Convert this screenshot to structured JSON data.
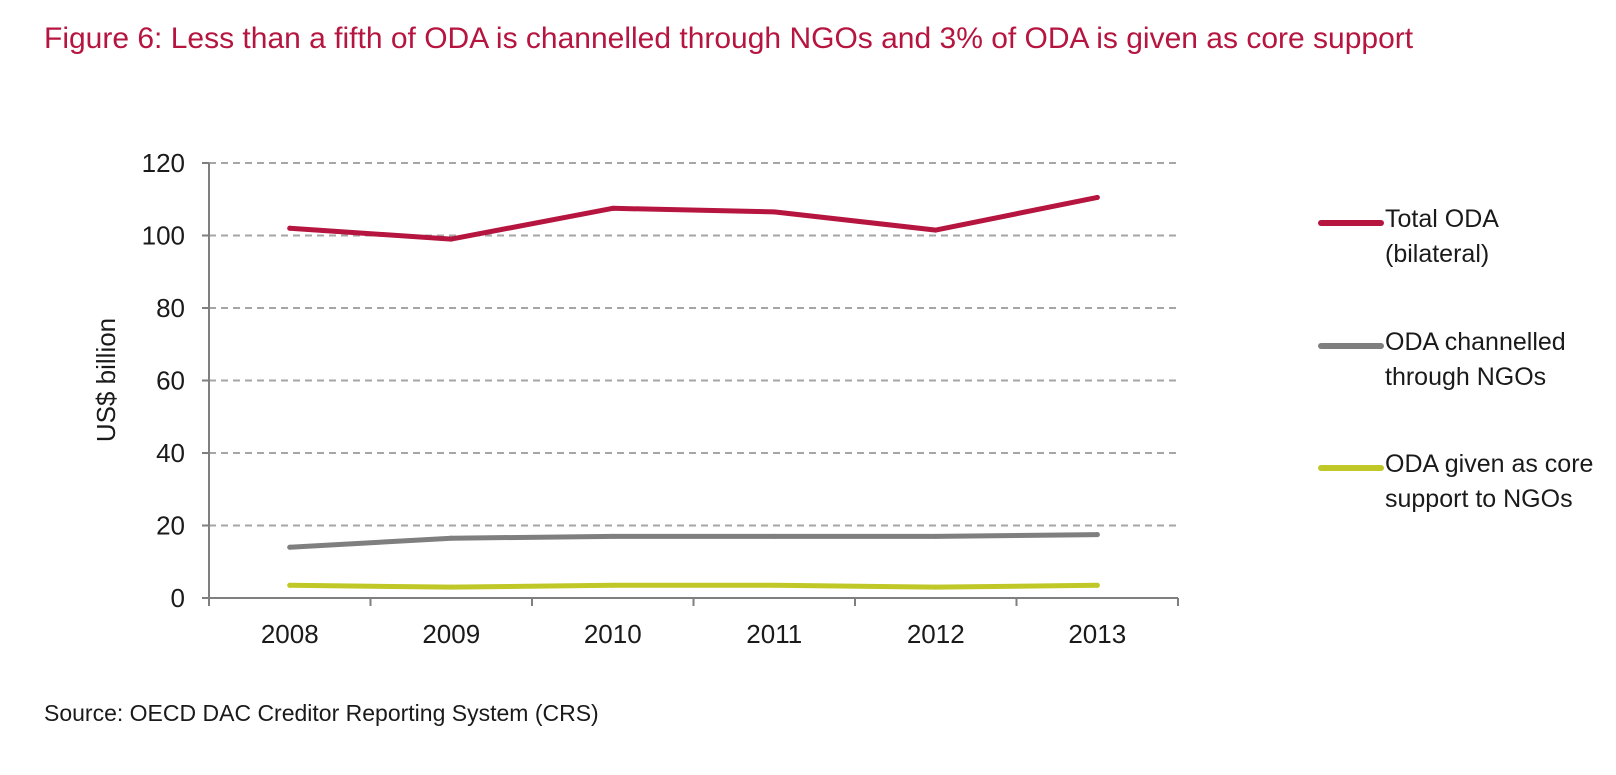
{
  "title": "Figure 6: Less than a fifth of ODA is channelled through NGOs and 3% of ODA is given as core support",
  "source": "Source: OECD DAC Creditor Reporting System (CRS)",
  "chart_data": {
    "type": "line",
    "x": [
      "2008",
      "2009",
      "2010",
      "2011",
      "2012",
      "2013"
    ],
    "ylabel": "US$ billion",
    "xlabel": "",
    "ylim": [
      0,
      120
    ],
    "yticks": [
      0,
      20,
      40,
      60,
      80,
      100,
      120
    ],
    "grid": "horizontal dashed",
    "legend_position": "right",
    "series": [
      {
        "name": "Total ODA (bilateral)",
        "color": "#b5153f",
        "values": [
          102,
          99,
          107.5,
          106.5,
          101.5,
          110.5
        ]
      },
      {
        "name": "ODA channelled through NGOs",
        "color": "#7f7f7f",
        "values": [
          14,
          16.5,
          17,
          17,
          17,
          17.5
        ]
      },
      {
        "name": "ODA given as core support to NGOs",
        "color": "#bfc826",
        "values": [
          3.5,
          3,
          3.5,
          3.5,
          3,
          3.5
        ]
      }
    ]
  }
}
